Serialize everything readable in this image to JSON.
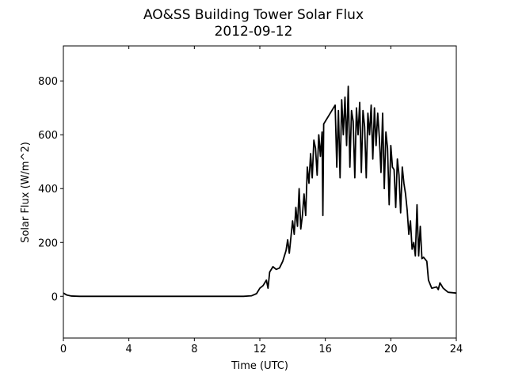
{
  "chart_data": {
    "type": "line",
    "title": "AO&SS Building Tower Solar Flux",
    "subtitle": "2012-09-12",
    "x_label": "Time (UTC)",
    "y_label": "Solar Flux (W/m^2)",
    "color": "#000000",
    "xlim": [
      0,
      24
    ],
    "xticks": [
      0,
      4,
      8,
      12,
      16,
      20,
      24
    ],
    "ylim": [
      -155,
      930
    ],
    "yticks": [
      0,
      200,
      400,
      600,
      800
    ],
    "grid": false,
    "x": [
      0,
      0.2,
      0.5,
      1,
      11,
      11.5,
      11.8,
      12,
      12.2,
      12.4,
      12.5,
      12.6,
      12.8,
      13,
      13.2,
      13.4,
      13.6,
      13.7,
      13.8,
      14,
      14.1,
      14.2,
      14.3,
      14.4,
      14.5,
      14.6,
      14.7,
      14.8,
      14.9,
      15,
      15.1,
      15.2,
      15.3,
      15.4,
      15.5,
      15.6,
      15.7,
      15.8,
      15.85,
      15.9,
      16.2,
      16.5,
      16.6,
      16.7,
      16.8,
      16.9,
      17,
      17.1,
      17.2,
      17.3,
      17.4,
      17.5,
      17.6,
      17.7,
      17.8,
      17.9,
      18,
      18.1,
      18.2,
      18.3,
      18.4,
      18.5,
      18.6,
      18.7,
      18.8,
      18.9,
      19,
      19.1,
      19.2,
      19.3,
      19.4,
      19.5,
      19.6,
      19.7,
      19.8,
      19.9,
      20,
      20.1,
      20.2,
      20.3,
      20.4,
      20.5,
      20.6,
      20.7,
      20.8,
      20.9,
      21,
      21.1,
      21.2,
      21.3,
      21.4,
      21.5,
      21.6,
      21.7,
      21.8,
      21.9,
      22,
      22.2,
      22.3,
      22.5,
      22.8,
      22.9,
      23,
      23.2,
      23.5,
      24
    ],
    "values": [
      12,
      5,
      1,
      0,
      0,
      2,
      10,
      30,
      40,
      60,
      30,
      90,
      110,
      100,
      105,
      130,
      170,
      210,
      160,
      280,
      230,
      330,
      260,
      400,
      250,
      300,
      380,
      300,
      480,
      420,
      530,
      440,
      580,
      550,
      450,
      600,
      520,
      610,
      300,
      640,
      670,
      700,
      710,
      480,
      690,
      440,
      730,
      600,
      740,
      560,
      780,
      480,
      690,
      650,
      440,
      700,
      600,
      720,
      460,
      690,
      630,
      440,
      680,
      600,
      710,
      510,
      700,
      560,
      680,
      590,
      460,
      680,
      400,
      610,
      550,
      340,
      560,
      480,
      470,
      330,
      510,
      450,
      310,
      480,
      420,
      380,
      320,
      230,
      280,
      175,
      200,
      150,
      340,
      150,
      260,
      140,
      145,
      130,
      60,
      30,
      35,
      25,
      50,
      30,
      15,
      12
    ]
  }
}
